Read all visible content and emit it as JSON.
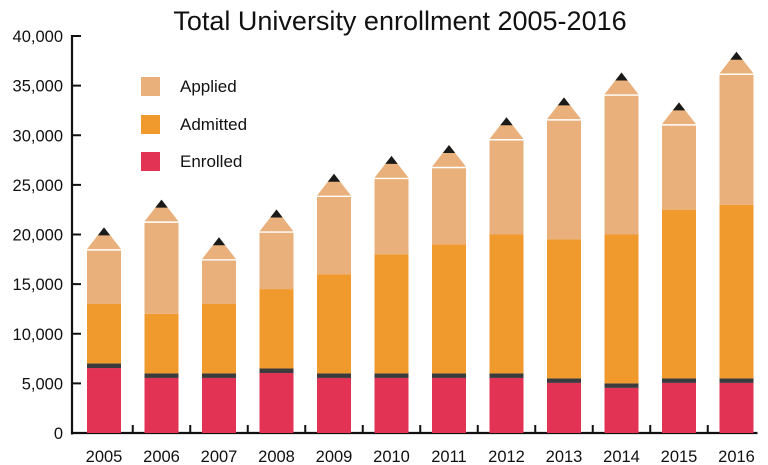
{
  "chart_data": {
    "type": "bar",
    "stacked": true,
    "title": "Total University enrollment 2005-2016",
    "xlabel": "",
    "ylabel": "",
    "ylim": [
      0,
      40000
    ],
    "yticks": [
      0,
      5000,
      10000,
      15000,
      20000,
      25000,
      30000,
      35000,
      40000
    ],
    "ytick_labels": [
      "0",
      "5,000",
      "10,000",
      "15,000",
      "20,000",
      "25,000",
      "30,000",
      "35,000",
      "40,000"
    ],
    "grid": false,
    "legend_position": "top-left",
    "categories": [
      "2005",
      "2006",
      "2007",
      "2008",
      "2009",
      "2010",
      "2011",
      "2012",
      "2013",
      "2014",
      "2015",
      "2016"
    ],
    "series": [
      {
        "name": "Applied",
        "color": "#E9B07B",
        "values": [
          18400,
          21200,
          17400,
          20200,
          23800,
          25600,
          26700,
          29500,
          31500,
          34000,
          31000,
          36100
        ]
      },
      {
        "name": "Admitted",
        "color": "#F0992C",
        "values": [
          13000,
          12000,
          13000,
          14500,
          16000,
          18000,
          19000,
          20000,
          19500,
          20000,
          22500,
          23000
        ]
      },
      {
        "name": "Enrolled",
        "color": "#E23355",
        "values": [
          7000,
          6000,
          6000,
          6500,
          6000,
          6000,
          6000,
          6000,
          5500,
          5000,
          5500,
          5500
        ]
      }
    ],
    "value_note": "Series values are cumulative heights (Applied >= Admitted >= Enrolled); bars drawn as pencils",
    "colors": {
      "ferrule_band": "#3B3B3D",
      "pencil_lead": "#1A1A1A",
      "axis": "#111111"
    }
  }
}
